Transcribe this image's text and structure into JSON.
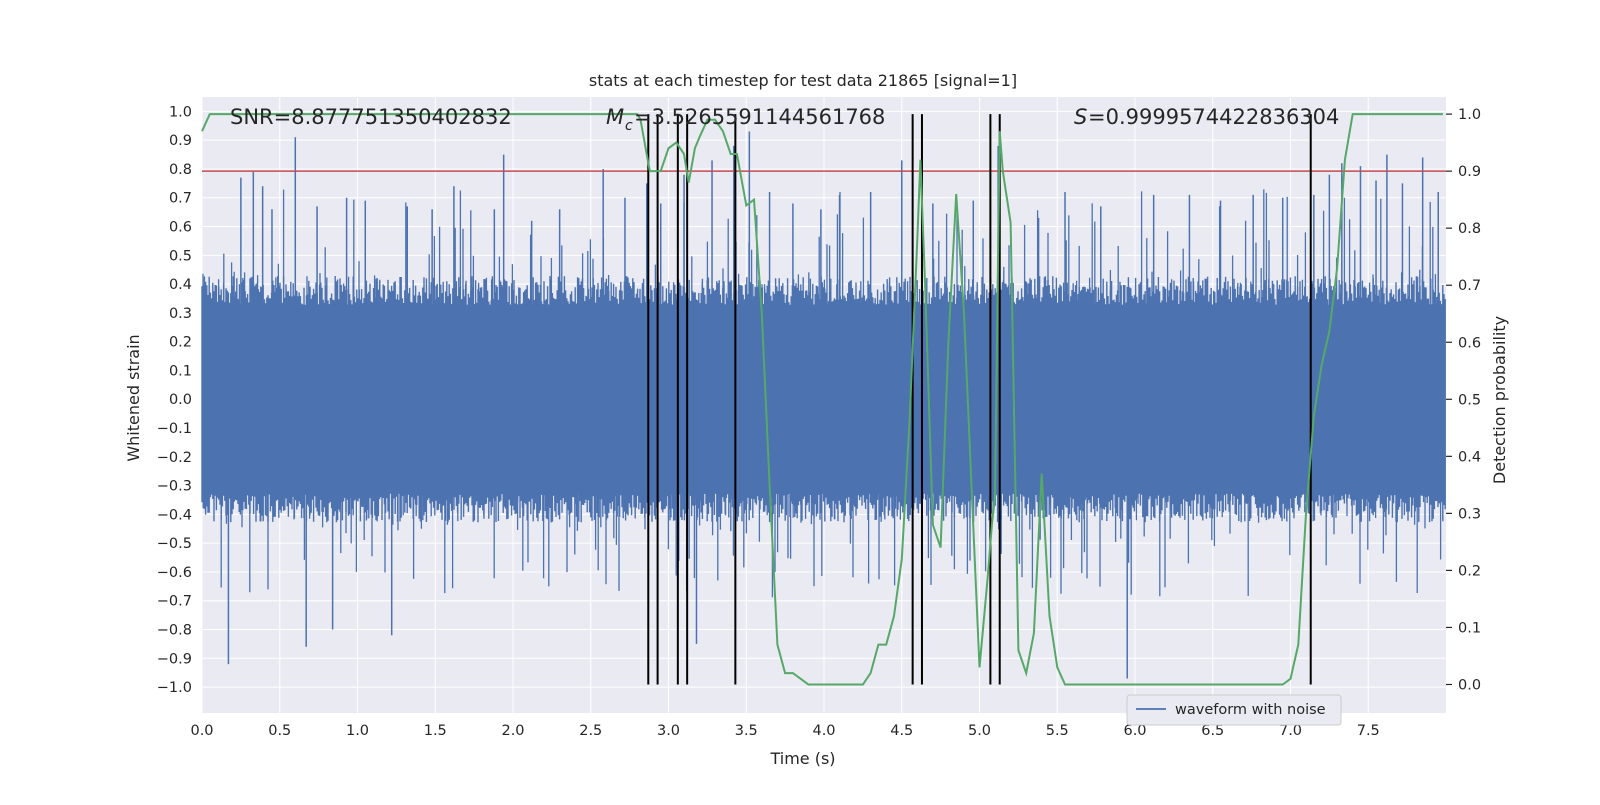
{
  "chart_data": {
    "type": "line",
    "title": "stats at each timestep for test data 21865 [signal=1]",
    "xlabel": "Time (s)",
    "ylabel_left": "Whitened strain",
    "ylabel_right": "Detection probability",
    "xlim": [
      0.0,
      8.0
    ],
    "ylim_left": [
      -1.09,
      1.05
    ],
    "ylim_right": [
      -0.05,
      1.03
    ],
    "x_ticks": [
      "0.0",
      "0.5",
      "1.0",
      "1.5",
      "2.0",
      "2.5",
      "3.0",
      "3.5",
      "4.0",
      "4.5",
      "5.0",
      "5.5",
      "6.0",
      "6.5",
      "7.0",
      "7.5"
    ],
    "y_left_ticks": [
      "1.0",
      "0.9",
      "0.8",
      "0.7",
      "0.6",
      "0.5",
      "0.4",
      "0.3",
      "0.2",
      "0.1",
      "0.0",
      "−0.1",
      "−0.2",
      "−0.3",
      "−0.4",
      "−0.5",
      "−0.6",
      "−0.7",
      "−0.8",
      "−0.9",
      "−1.0"
    ],
    "y_right_ticks": [
      "1.0",
      "0.9",
      "0.8",
      "0.7",
      "0.6",
      "0.5",
      "0.4",
      "0.3",
      "0.2",
      "0.1",
      "0.0"
    ],
    "grid": true,
    "legend": {
      "position": "lower-right",
      "entries": [
        "waveform with noise"
      ]
    },
    "annotations": {
      "snr": "SNR=8.877751350402832",
      "mc": "=3.5265591144561768",
      "mc_symbol": "M",
      "mc_subscript": "c",
      "s": "=0.9999574422836304",
      "s_symbol": "S"
    },
    "colors": {
      "waveform": "#4c72b0",
      "probability": "#55a868",
      "threshold": "#c44e52",
      "markers": "#000000",
      "background": "#eaeaf2",
      "grid": "#ffffff"
    },
    "threshold_probability": 0.9,
    "waveform_stats": {
      "core_abs_amplitude": 0.4,
      "spike_max": 0.93,
      "spike_min": -0.97,
      "sample_times": [
        0.17,
        0.25,
        0.33,
        0.39,
        0.45,
        0.6,
        0.67,
        0.74,
        0.84,
        0.93,
        1.05,
        1.22,
        1.32,
        1.48,
        1.62,
        1.88,
        1.94,
        2.12,
        2.3,
        2.58,
        2.72,
        2.86,
        2.95,
        3.1,
        3.18,
        3.28,
        3.42,
        3.52,
        3.65,
        3.8,
        3.98,
        4.1,
        4.3,
        4.5,
        4.7,
        4.96,
        5.12,
        5.38,
        5.55,
        5.78,
        5.95,
        6.12,
        6.35,
        6.55,
        6.76,
        6.95,
        7.15,
        7.25,
        7.33,
        7.45,
        7.55,
        7.62,
        7.72,
        7.85,
        7.95
      ],
      "sample_peaks": [
        -0.92,
        0.77,
        0.79,
        0.74,
        0.66,
        0.91,
        -0.86,
        0.67,
        -0.8,
        0.7,
        0.69,
        -0.82,
        0.67,
        0.66,
        0.74,
        0.66,
        0.85,
        0.62,
        0.66,
        0.8,
        0.7,
        0.75,
        0.68,
        0.78,
        -0.85,
        0.83,
        0.88,
        0.93,
        0.72,
        0.68,
        0.66,
        0.71,
        0.72,
        0.83,
        0.68,
        0.69,
        0.88,
        0.63,
        0.72,
        0.67,
        -0.97,
        0.71,
        0.71,
        0.69,
        0.71,
        0.7,
        0.71,
        0.78,
        0.82,
        0.81,
        0.76,
        0.85,
        0.75,
        0.84,
        0.72
      ]
    },
    "detection_probability": {
      "x": [
        0.0,
        0.05,
        0.1,
        0.3,
        0.6,
        1.0,
        1.5,
        2.0,
        2.5,
        2.8,
        2.82,
        2.88,
        2.95,
        3.0,
        3.05,
        3.1,
        3.13,
        3.17,
        3.2,
        3.25,
        3.3,
        3.35,
        3.4,
        3.44,
        3.5,
        3.55,
        3.6,
        3.65,
        3.7,
        3.75,
        3.8,
        3.85,
        3.9,
        4.0,
        4.1,
        4.2,
        4.25,
        4.3,
        4.35,
        4.4,
        4.45,
        4.5,
        4.55,
        4.6,
        4.62,
        4.65,
        4.7,
        4.75,
        4.8,
        4.85,
        4.9,
        4.95,
        5.0,
        5.05,
        5.08,
        5.1,
        5.13,
        5.15,
        5.2,
        5.25,
        5.3,
        5.35,
        5.4,
        5.45,
        5.5,
        5.55,
        5.6,
        5.7,
        5.8,
        6.0,
        6.3,
        6.6,
        6.9,
        6.95,
        7.0,
        7.05,
        7.1,
        7.15,
        7.2,
        7.25,
        7.3,
        7.35,
        7.4,
        7.5,
        7.6,
        7.7,
        7.8,
        7.9,
        7.98
      ],
      "y": [
        0.97,
        1.0,
        1.0,
        1.0,
        1.0,
        1.0,
        1.0,
        1.0,
        1.0,
        1.0,
        0.99,
        0.9,
        0.9,
        0.94,
        0.95,
        0.93,
        0.88,
        0.94,
        0.96,
        0.99,
        0.99,
        0.97,
        0.93,
        0.93,
        0.84,
        0.85,
        0.65,
        0.35,
        0.07,
        0.02,
        0.02,
        0.01,
        0.0,
        0.0,
        0.0,
        0.0,
        0.0,
        0.02,
        0.07,
        0.07,
        0.12,
        0.22,
        0.46,
        0.78,
        0.92,
        0.7,
        0.28,
        0.24,
        0.6,
        0.86,
        0.65,
        0.34,
        0.03,
        0.18,
        0.28,
        0.33,
        0.97,
        0.9,
        0.81,
        0.06,
        0.02,
        0.09,
        0.37,
        0.12,
        0.03,
        0.0,
        0.0,
        0.0,
        0.0,
        0.0,
        0.0,
        0.0,
        0.0,
        0.0,
        0.01,
        0.07,
        0.3,
        0.47,
        0.56,
        0.62,
        0.73,
        0.92,
        1.0,
        1.0,
        1.0,
        1.0,
        1.0,
        1.0,
        1.0
      ]
    },
    "marker_times": [
      2.87,
      2.93,
      3.06,
      3.12,
      3.43,
      4.57,
      4.63,
      5.07,
      5.13,
      7.13
    ]
  }
}
